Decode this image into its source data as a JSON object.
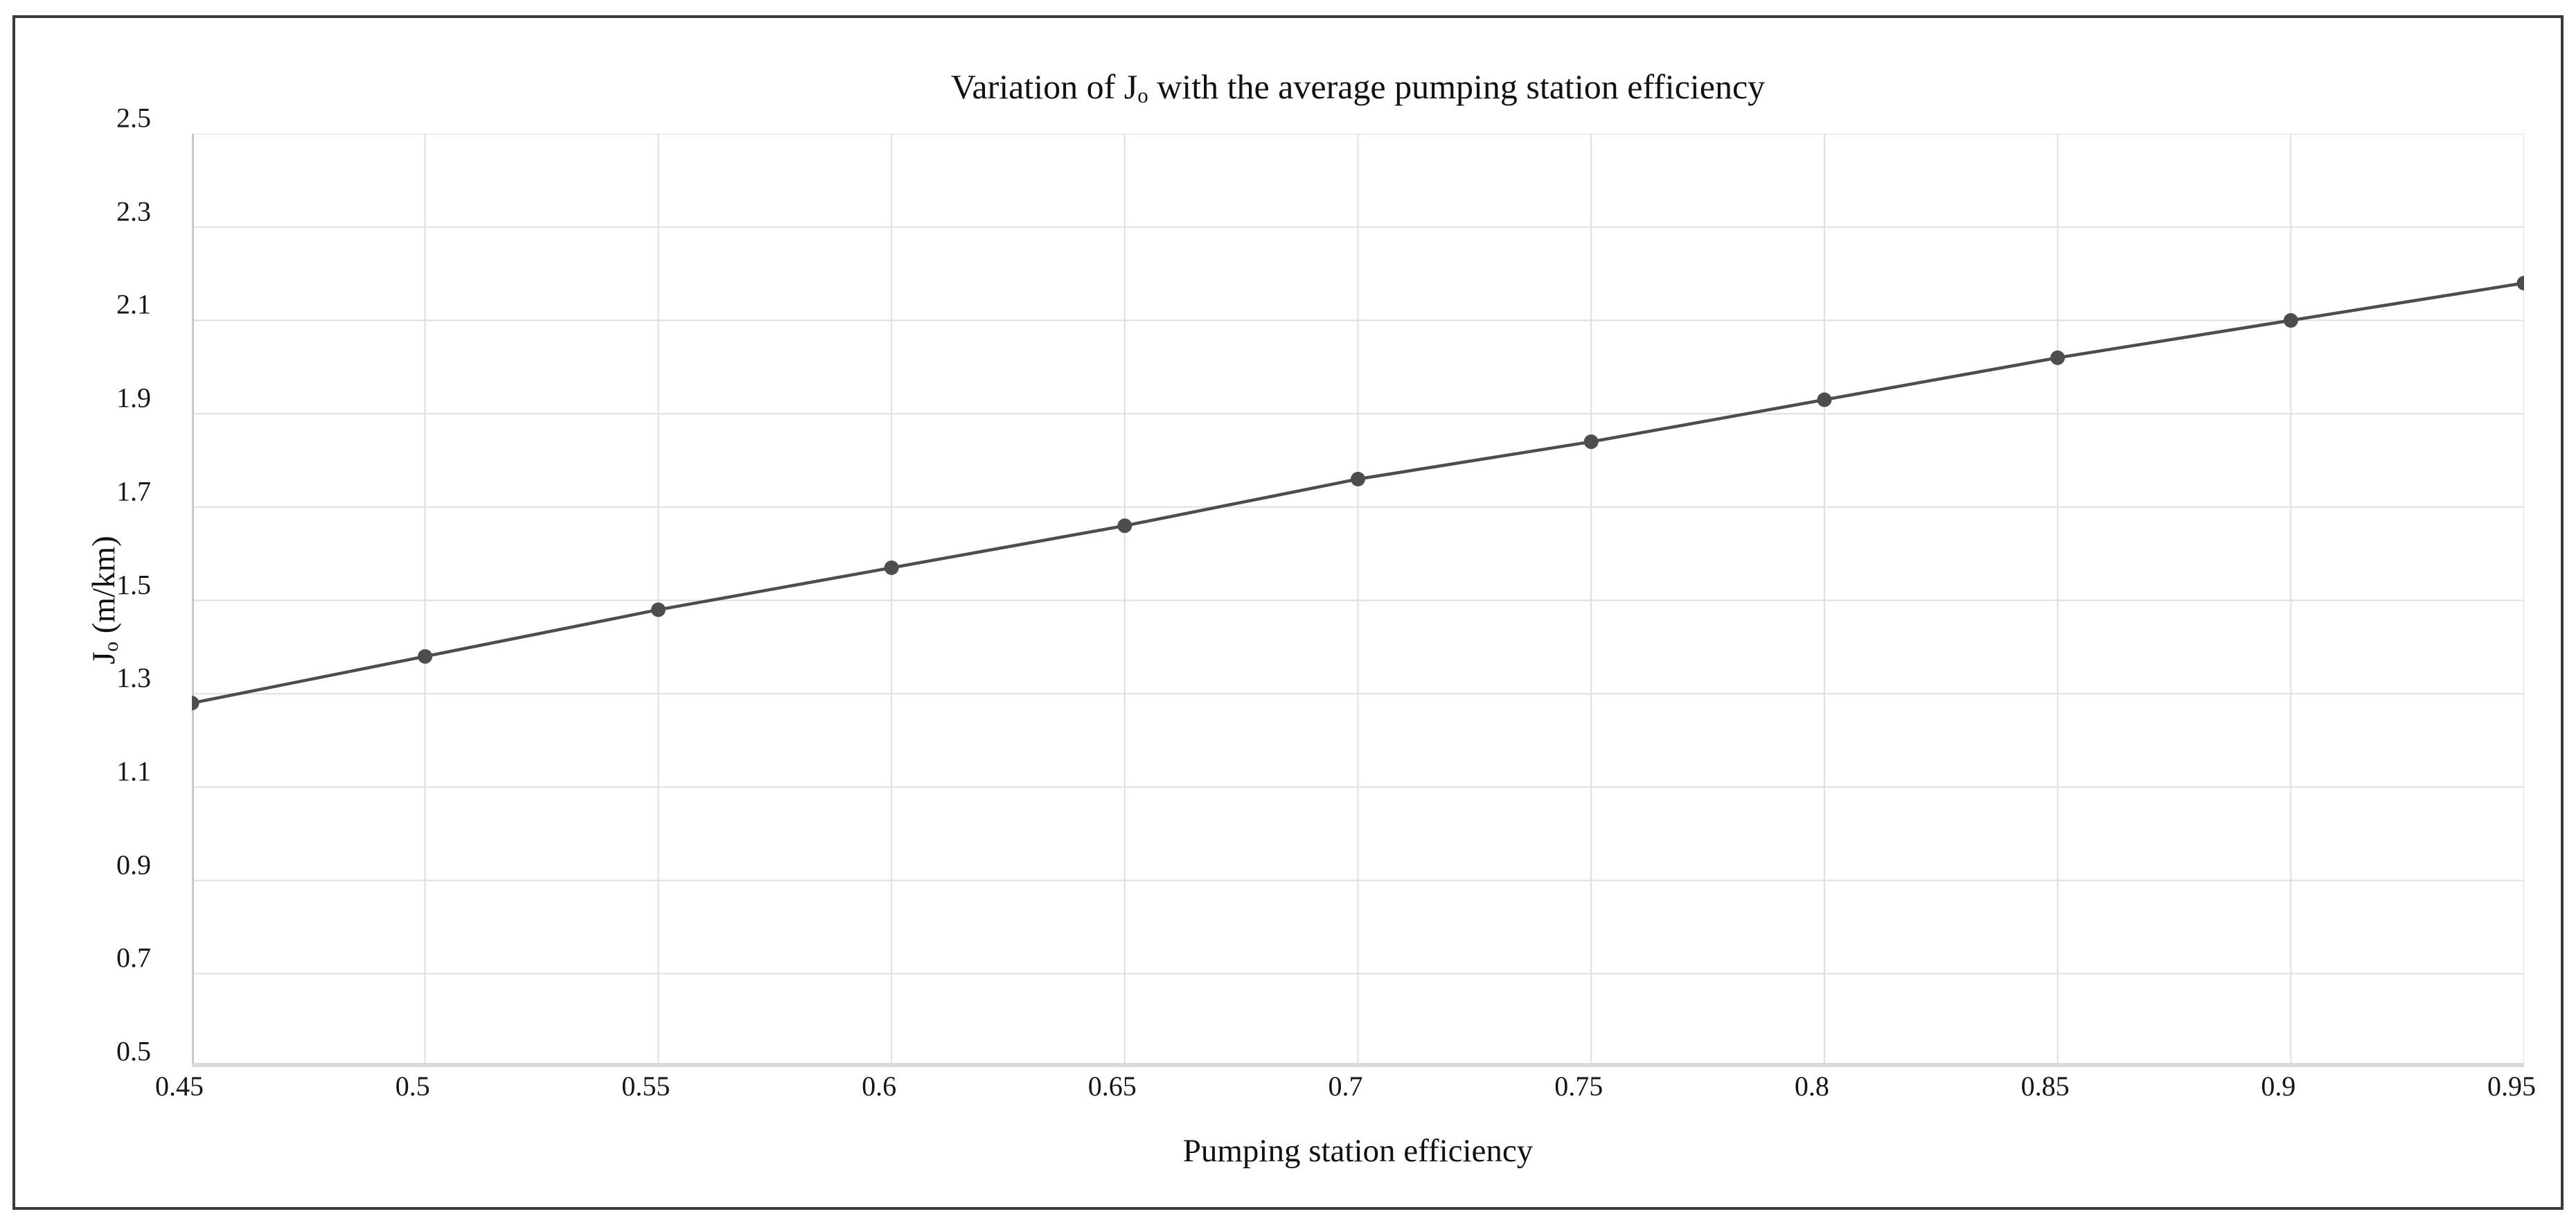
{
  "page": {
    "background": "#ffffff",
    "frame_border_color": "#3b3b3b"
  },
  "chart_data": {
    "type": "line",
    "title": "Variation of Jo with the average pumping station efficiency",
    "title_parts": {
      "prefix": "Variation of J",
      "sub": "o",
      "suffix": " with the average pumping station efficiency"
    },
    "xlabel": "Pumping station efficiency",
    "ylabel": "Jo (m/km)",
    "ylabel_parts": {
      "prefix": "J",
      "sub": "o",
      "suffix": " (m/km)"
    },
    "x": [
      0.45,
      0.5,
      0.55,
      0.6,
      0.65,
      0.7,
      0.75,
      0.8,
      0.85,
      0.9,
      0.95
    ],
    "x_tick_labels": [
      "0.45",
      "0.5",
      "0.55",
      "0.6",
      "0.65",
      "0.7",
      "0.75",
      "0.8",
      "0.85",
      "0.9",
      "0.95"
    ],
    "series": [
      {
        "name": "Jo",
        "values": [
          1.28,
          1.38,
          1.48,
          1.57,
          1.66,
          1.76,
          1.84,
          1.93,
          2.02,
          2.1,
          2.18
        ]
      }
    ],
    "xlim": [
      0.45,
      0.95
    ],
    "ylim": [
      0.5,
      2.5
    ],
    "y_ticks": [
      0.5,
      0.7,
      0.9,
      1.1,
      1.3,
      1.5,
      1.7,
      1.9,
      2.1,
      2.3,
      2.5
    ],
    "y_tick_labels": [
      "0.5",
      "0.7",
      "0.9",
      "1.1",
      "1.3",
      "1.5",
      "1.7",
      "1.9",
      "2.1",
      "2.3",
      "2.5"
    ],
    "grid": true,
    "legend": "none",
    "marker": "circle",
    "line_color": "#4d4d4d",
    "marker_color": "#4d4d4d",
    "gridline_color": "#dfdfdf",
    "left_axis_color": "#c9c9c9",
    "bottom_axis_color": "#d9d9d9",
    "text_color": "#151515"
  }
}
